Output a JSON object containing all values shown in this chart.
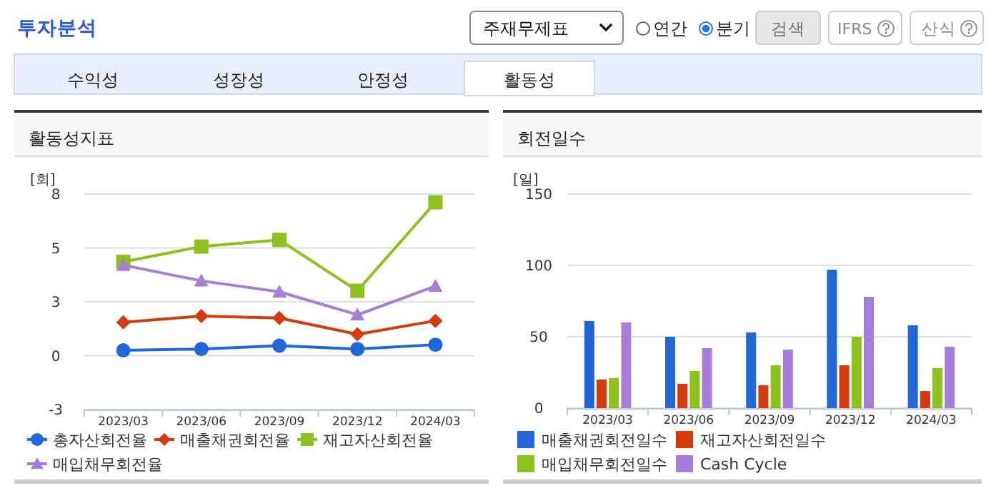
{
  "chart_data": [
    {
      "type": "other",
      "title": "투자분석",
      "annotations": [
        "주재무제표",
        "연간",
        "분기",
        "검색",
        "IFRS",
        "산식",
        "수익성",
        "성장성",
        "안정성",
        "활동성"
      ]
    },
    {
      "type": "line",
      "title": "활동성지표",
      "ylabel": "[회]",
      "categories": [
        "2023/03",
        "2023/06",
        "2023/09",
        "2023/12",
        "2024/03"
      ],
      "ylim": [
        -2.75,
        8.25
      ],
      "yticks": [
        {
          "value": -2.75,
          "label": "-3"
        },
        {
          "value": 0,
          "label": "0"
        },
        {
          "value": 2.75,
          "label": "3"
        },
        {
          "value": 5.5,
          "label": "5"
        },
        {
          "value": 8.25,
          "label": "8"
        }
      ],
      "grid": "y",
      "legend": "bottom",
      "series": [
        {
          "name": "총자산회전율",
          "color": "#2166d9",
          "marker": "circle",
          "values": [
            0.27,
            0.34,
            0.51,
            0.34,
            0.56
          ]
        },
        {
          "name": "매출채권회전율",
          "color": "#d43a0c",
          "marker": "diamond",
          "values": [
            1.7,
            2.02,
            1.92,
            1.09,
            1.78
          ]
        },
        {
          "name": "재고자산회전율",
          "color": "#8cc21b",
          "marker": "square",
          "values": [
            4.79,
            5.57,
            5.91,
            3.31,
            7.83
          ]
        },
        {
          "name": "매입채무회전율",
          "color": "#a67ddb",
          "marker": "triangle",
          "values": [
            4.62,
            3.82,
            3.26,
            2.09,
            3.55
          ]
        }
      ]
    },
    {
      "type": "bar",
      "title": "회전일수",
      "ylabel": "[일]",
      "categories": [
        "2023/03",
        "2023/06",
        "2023/09",
        "2023/12",
        "2024/03"
      ],
      "ylim": [
        0,
        150
      ],
      "yticks": [
        0,
        50,
        100,
        150
      ],
      "grid": "y",
      "legend": "bottom",
      "series": [
        {
          "name": "매출채권회전일수",
          "color": "#2166d9",
          "values": [
            61,
            50,
            53,
            97,
            58
          ]
        },
        {
          "name": "재고자산회전일수",
          "color": "#d43a0c",
          "values": [
            20,
            17,
            16,
            30,
            12
          ]
        },
        {
          "name": "매입채무회전일수",
          "color": "#8cc21b",
          "values": [
            21,
            26,
            30,
            50,
            28
          ]
        },
        {
          "name": "Cash Cycle",
          "color": "#a67ddb",
          "values": [
            60,
            42,
            41,
            78,
            43
          ]
        }
      ]
    }
  ]
}
